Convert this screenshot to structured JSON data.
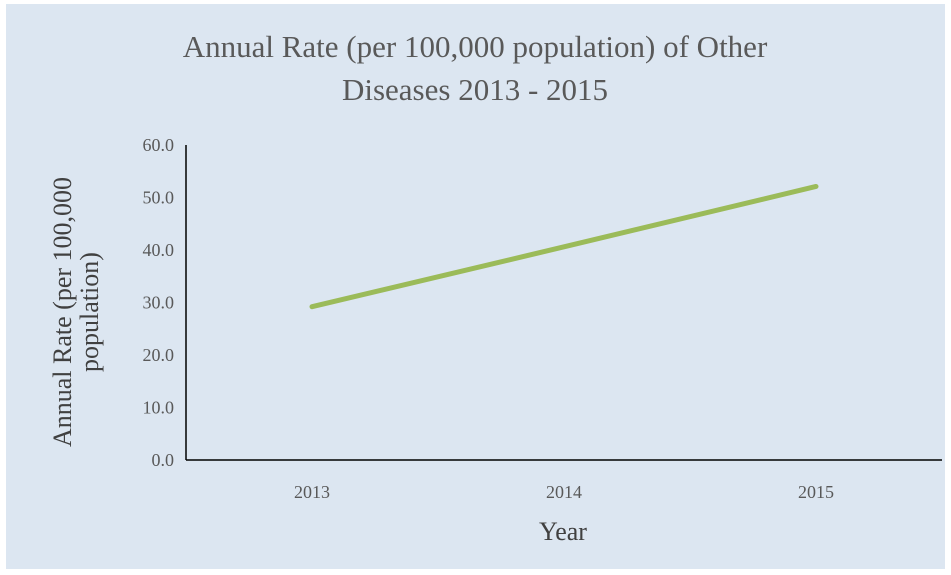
{
  "chart_data": {
    "type": "line",
    "title_lines": [
      "Annual Rate (per 100,000 population) of Other",
      "Diseases 2013 - 2015"
    ],
    "xlabel": "Year",
    "ylabel_lines": [
      "Annual Rate (per 100,000",
      "population)"
    ],
    "categories": [
      "2013",
      "2014",
      "2015"
    ],
    "series": [
      {
        "values": [
          29.2,
          40.6,
          52.1
        ],
        "color": "#9bbb59"
      }
    ],
    "ylim": [
      0,
      60
    ],
    "yticks": [
      "0.0",
      "10.0",
      "20.0",
      "30.0",
      "40.0",
      "50.0",
      "60.0"
    ],
    "grid": false,
    "legend": "none",
    "colors": {
      "background": "#dce6f1",
      "axis": "#000000",
      "text": "#595959"
    }
  }
}
